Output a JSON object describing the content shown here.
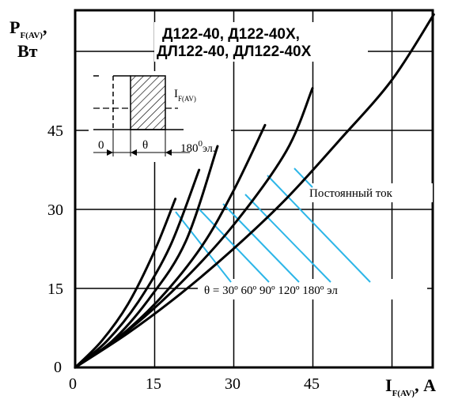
{
  "chart_data": {
    "type": "line",
    "title_line1": "Д122-40,   Д122-40Х,",
    "title_line2": "ДЛ122-40, ДЛ122-40Х",
    "ylabel_main": "P",
    "ylabel_sub": "F(AV)",
    "ylabel_comma": ",",
    "ylabel_unit": "Вт",
    "xlabel_main": "I",
    "xlabel_sub": "F(AV)",
    "xlabel_unit": ", А",
    "xlim": [
      0,
      68
    ],
    "ylim": [
      0,
      68
    ],
    "x_ticks": [
      0,
      15,
      30,
      45
    ],
    "y_ticks": [
      0,
      15,
      30,
      45
    ],
    "grid": true,
    "series": [
      {
        "name": "θ = 30°",
        "x": [
          0,
          5,
          10,
          15,
          19
        ],
        "y": [
          0,
          5,
          12,
          22,
          32
        ]
      },
      {
        "name": "60°",
        "x": [
          0,
          6,
          12,
          18,
          23.5
        ],
        "y": [
          0,
          5,
          12.5,
          23,
          37.5
        ]
      },
      {
        "name": "90°",
        "x": [
          0,
          7,
          14,
          21,
          27
        ],
        "y": [
          0,
          5,
          13,
          24,
          42
        ]
      },
      {
        "name": "120°",
        "x": [
          0,
          8,
          16,
          24,
          30,
          36
        ],
        "y": [
          0,
          5.5,
          13,
          23,
          33.5,
          46
        ]
      },
      {
        "name": "180°",
        "x": [
          0,
          10,
          20,
          30,
          40,
          45
        ],
        "y": [
          0,
          7,
          16,
          27,
          41,
          53
        ]
      },
      {
        "name": "Постоянный ток",
        "x": [
          0,
          10,
          20,
          30,
          40,
          50,
          60,
          68
        ],
        "y": [
          0,
          6.5,
          14,
          22.5,
          32,
          43,
          54.5,
          67
        ]
      }
    ],
    "annotations": {
      "dc_label": "Постоянный ток",
      "theta_label": "θ  = 30º 60º  90º 120º 180º эл",
      "inset": {
        "current_label": "I",
        "current_sub": "F(AV)",
        "zero": "0",
        "theta": "θ",
        "period": "180",
        "period_unit": "эл."
      }
    }
  }
}
